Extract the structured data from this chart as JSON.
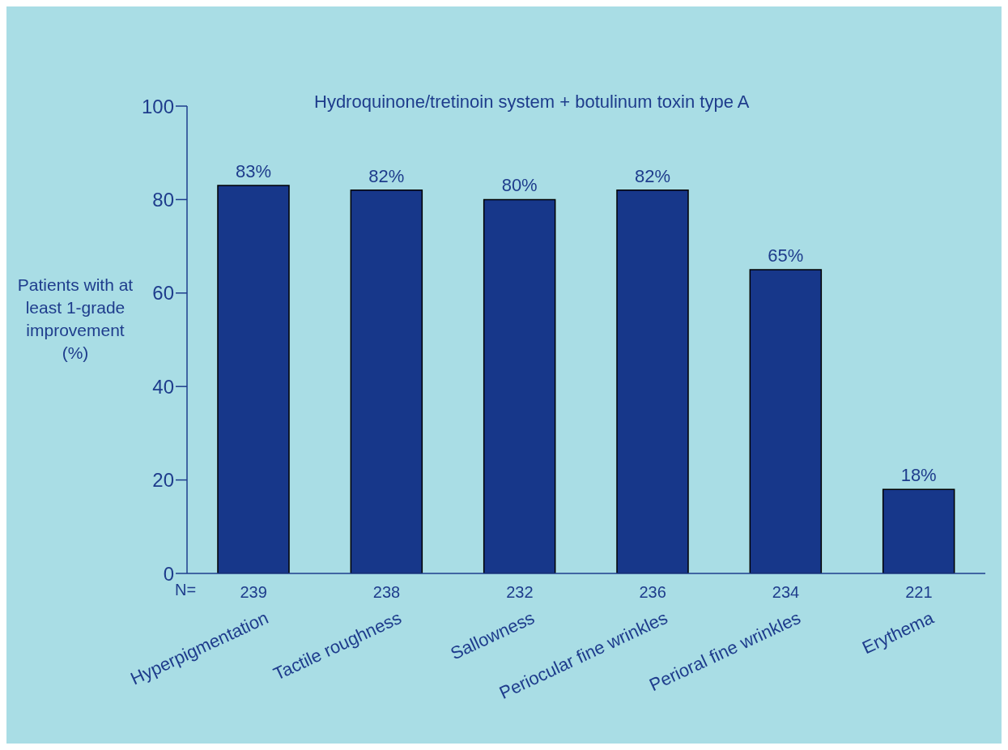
{
  "chart_data": {
    "type": "bar",
    "title": "Hydroquinone/tretinoin system + botulinum toxin type A",
    "ylabel": "Patients with at least 1-grade improvement (%)",
    "categories": [
      "Hyperpigmentation",
      "Tactile roughness",
      "Sallowness",
      "Periocular fine wrinkles",
      "Perioral fine wrinkles",
      "Erythema"
    ],
    "values": [
      83,
      82,
      80,
      82,
      65,
      18
    ],
    "value_labels": [
      "83%",
      "82%",
      "80%",
      "82%",
      "65%",
      "18%"
    ],
    "color": "#17378a",
    "ylim": [
      0,
      100
    ],
    "yticks": [
      0,
      20,
      40,
      60,
      80,
      100
    ],
    "grid": false,
    "legend": false,
    "annotations": [
      "N=",
      "239",
      "238",
      "232",
      "236",
      "234",
      "221"
    ]
  }
}
